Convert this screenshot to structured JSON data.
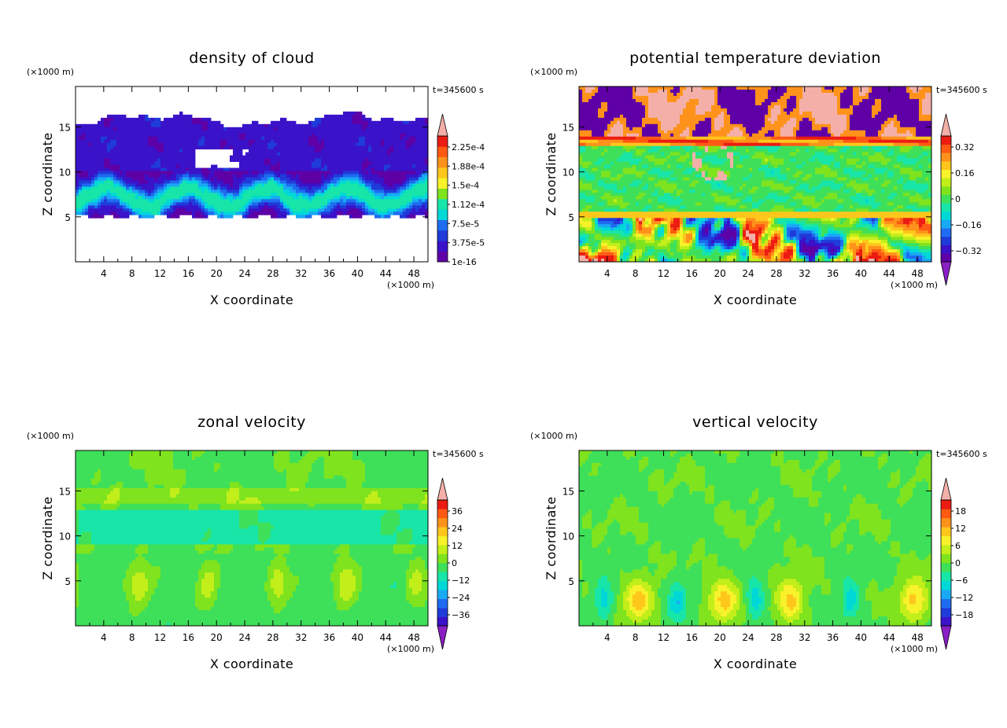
{
  "chart_data": [
    {
      "type": "heatmap",
      "title": "density of cloud",
      "xlabel": "X coordinate",
      "ylabel": "Z coordinate",
      "x_unit": "(×1000 m)",
      "y_unit": "(×1000 m)",
      "time_label": "t=345600 s",
      "xlim": [
        0,
        50
      ],
      "ylim": [
        0,
        19.5
      ],
      "x_ticks": [
        "4",
        "8",
        "12",
        "16",
        "20",
        "24",
        "28",
        "32",
        "36",
        "40",
        "44",
        "48"
      ],
      "y_ticks": [
        "5",
        "10",
        "15"
      ],
      "colorbar": {
        "labels": [
          "2.25e-4",
          "1.88e-4",
          "1.5e-4",
          "1.12e-4",
          "7.5e-5",
          "3.75e-5",
          "1e-16"
        ],
        "min_triangle": false
      },
      "field": "cloud"
    },
    {
      "type": "heatmap",
      "title": "potential temperature deviation",
      "xlabel": "X coordinate",
      "ylabel": "Z coordinate",
      "x_unit": "(×1000 m)",
      "y_unit": "(×1000 m)",
      "time_label": "t=345600 s",
      "xlim": [
        0,
        50
      ],
      "ylim": [
        0,
        19.5
      ],
      "x_ticks": [
        "4",
        "8",
        "12",
        "16",
        "20",
        "24",
        "28",
        "32",
        "36",
        "40",
        "44",
        "48"
      ],
      "y_ticks": [
        "5",
        "10",
        "15"
      ],
      "colorbar": {
        "labels": [
          "0.32",
          "0.16",
          "0",
          "−0.16",
          "−0.32"
        ],
        "min_triangle": true
      },
      "field": "theta"
    },
    {
      "type": "heatmap",
      "title": "zonal velocity",
      "xlabel": "X coordinate",
      "ylabel": "Z coordinate",
      "x_unit": "(×1000 m)",
      "y_unit": "(×1000 m)",
      "time_label": "t=345600 s",
      "xlim": [
        0,
        50
      ],
      "ylim": [
        0,
        19.5
      ],
      "x_ticks": [
        "4",
        "8",
        "12",
        "16",
        "20",
        "24",
        "28",
        "32",
        "36",
        "40",
        "44",
        "48"
      ],
      "y_ticks": [
        "5",
        "10",
        "15"
      ],
      "colorbar": {
        "labels": [
          "36",
          "24",
          "12",
          "0",
          "−12",
          "−24",
          "−36"
        ],
        "min_triangle": true
      },
      "field": "zonal"
    },
    {
      "type": "heatmap",
      "title": "vertical velocity",
      "xlabel": "X coordinate",
      "ylabel": "Z coordinate",
      "x_unit": "(×1000 m)",
      "y_unit": "(×1000 m)",
      "time_label": "t=345600 s",
      "xlim": [
        0,
        50
      ],
      "ylim": [
        0,
        19.5
      ],
      "x_ticks": [
        "4",
        "8",
        "12",
        "16",
        "20",
        "24",
        "28",
        "32",
        "36",
        "40",
        "44",
        "48"
      ],
      "y_ticks": [
        "5",
        "10",
        "15"
      ],
      "colorbar": {
        "labels": [
          "18",
          "12",
          "6",
          "0",
          "−6",
          "−12",
          "−18"
        ],
        "min_triangle": true
      },
      "field": "vertical"
    }
  ],
  "colormap": [
    "#5e00a6",
    "#3a12c9",
    "#1f3bd9",
    "#1e6cf0",
    "#19a9f5",
    "#00d8d8",
    "#18e5a8",
    "#3ee05a",
    "#7fe31e",
    "#c2ee1a",
    "#f7f22a",
    "#ffc61c",
    "#ff921a",
    "#ff5a14",
    "#ec1c12",
    "#f4b0a8"
  ]
}
